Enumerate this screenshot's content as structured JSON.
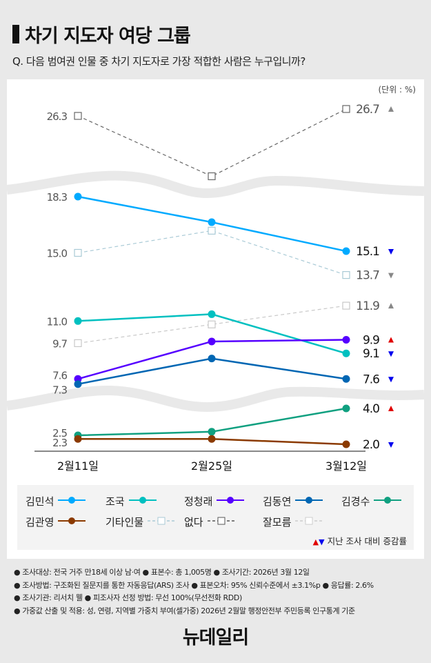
{
  "header": {
    "title": "차기 지도자 여당 그룹",
    "question": "Q. 다음 범여권 인물 중 차기 지도자로 가장 적합한 사람은 누구입니까?",
    "unit": "(단위 : %)"
  },
  "chart_data": {
    "type": "line",
    "categories": [
      "2월11일",
      "2월25일",
      "3월12일"
    ],
    "y_axis": "broken (three bands)",
    "grid": false,
    "legend": "bottom",
    "series": [
      {
        "name": "없다",
        "values": [
          26.3,
          22.8,
          26.7
        ],
        "labels": [
          "26.3",
          "",
          "26.7"
        ],
        "change": "up",
        "color": "#666666",
        "style": "dashed-square"
      },
      {
        "name": "김민석",
        "values": [
          18.3,
          16.8,
          15.1
        ],
        "labels": [
          "18.3",
          "",
          "15.1"
        ],
        "change": "down",
        "color": "#00aaff",
        "style": "solid-circle"
      },
      {
        "name": "기타인물",
        "values": [
          15.0,
          16.3,
          13.7
        ],
        "labels": [
          "15.0",
          "",
          "13.7"
        ],
        "change": "down",
        "color": "#a9cad6",
        "style": "dashed-square"
      },
      {
        "name": "잘모름",
        "values": [
          9.7,
          10.8,
          11.9
        ],
        "labels": [
          "9.7",
          "",
          "11.9"
        ],
        "change": "up",
        "color": "#c8c8c8",
        "style": "dashed-square"
      },
      {
        "name": "조국",
        "values": [
          11.0,
          11.4,
          9.1
        ],
        "labels": [
          "11.0",
          "",
          "9.1"
        ],
        "change": "down",
        "color": "#00c0c0",
        "style": "solid-circle"
      },
      {
        "name": "정청래",
        "values": [
          7.6,
          9.8,
          9.9
        ],
        "labels": [
          "7.6",
          "",
          "9.9"
        ],
        "change": "up",
        "color": "#5500ff",
        "style": "solid-circle"
      },
      {
        "name": "김동연",
        "values": [
          7.3,
          8.8,
          7.6
        ],
        "labels": [
          "7.3",
          "",
          "7.6"
        ],
        "change": "down",
        "color": "#0066b3",
        "style": "solid-circle"
      },
      {
        "name": "김경수",
        "values": [
          2.5,
          2.7,
          4.0
        ],
        "labels": [
          "2.5",
          "",
          "4.0"
        ],
        "change": "up",
        "color": "#10a080",
        "style": "solid-circle"
      },
      {
        "name": "김관영",
        "values": [
          2.3,
          2.3,
          2.0
        ],
        "labels": [
          "2.3",
          "",
          "2.0"
        ],
        "change": "down",
        "color": "#8b3a00",
        "style": "solid-circle"
      }
    ]
  },
  "colors": {
    "up": "#e00000",
    "down": "#0000ee",
    "neutral_up": "#888888"
  },
  "legend": {
    "items": [
      {
        "name": "김민석",
        "color": "#00aaff",
        "marker": "circle",
        "dash": false
      },
      {
        "name": "조국",
        "color": "#00c0c0",
        "marker": "circle",
        "dash": false
      },
      {
        "name": "정청래",
        "color": "#5500ff",
        "marker": "circle",
        "dash": false
      },
      {
        "name": "김동연",
        "color": "#0066b3",
        "marker": "circle",
        "dash": false
      },
      {
        "name": "김경수",
        "color": "#10a080",
        "marker": "circle",
        "dash": false
      },
      {
        "name": "김관영",
        "color": "#8b3a00",
        "marker": "circle",
        "dash": false
      },
      {
        "name": "기타인물",
        "color": "#a9cad6",
        "marker": "square",
        "dash": true
      },
      {
        "name": "없다",
        "color": "#555555",
        "marker": "square",
        "dash": true
      },
      {
        "name": "잘모름",
        "color": "#cccccc",
        "marker": "square",
        "dash": true
      }
    ],
    "note_up": "▲",
    "note_down": "▼",
    "note": "지난 조사 대비 증감률"
  },
  "notes": [
    "조사대상: 전국 거주 만18세 이상 남·여 ● 표본수: 총 1,005명 ● 조사기간: 2026년 3월 12일",
    "조사방법: 구조화된 질문지를 통한 자동응답(ARS) 조사 ● 표본오차: 95% 신뢰수준에서 ±3.1%p ● 응답률: 2.6%",
    "조사기관: 리서치 웰 ● 피조사자 선정 방법: 무선 100%(무선전화 RDD)",
    "가중값 산출 및 적용: 성, 연령, 지역별 가중치 부여(셀가중) 2026년 2월말 행정안전부 주민등록 인구통계 기준"
  ],
  "logo": "뉴데일리"
}
